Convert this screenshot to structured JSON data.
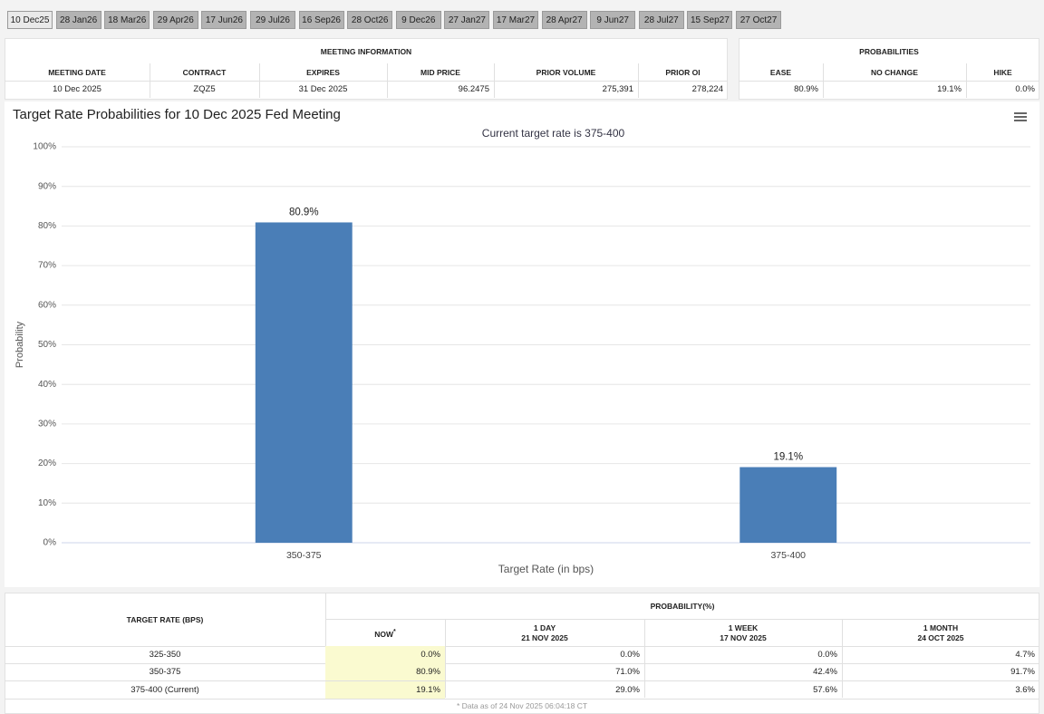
{
  "tabs": [
    "10 Dec25",
    "28 Jan26",
    "18 Mar26",
    "29 Apr26",
    "17 Jun26",
    "29 Jul26",
    "16 Sep26",
    "28 Oct26",
    "9 Dec26",
    "27 Jan27",
    "17 Mar27",
    "28 Apr27",
    "9 Jun27",
    "28 Jul27",
    "15 Sep27",
    "27 Oct27"
  ],
  "meeting_info": {
    "title": "MEETING INFORMATION",
    "columns": [
      "MEETING DATE",
      "CONTRACT",
      "EXPIRES",
      "MID PRICE",
      "PRIOR VOLUME",
      "PRIOR OI"
    ],
    "row": [
      "10 Dec 2025",
      "ZQZ5",
      "31 Dec 2025",
      "96.2475",
      "275,391",
      "278,224"
    ]
  },
  "probabilities": {
    "title": "PROBABILITIES",
    "columns": [
      "EASE",
      "NO CHANGE",
      "HIKE"
    ],
    "row": [
      "80.9%",
      "19.1%",
      "0.0%"
    ]
  },
  "chart_data": {
    "type": "bar",
    "title": "Target Rate Probabilities for 10 Dec 2025 Fed Meeting",
    "subtitle": "Current target rate is 375-400",
    "categories": [
      "350-375",
      "375-400"
    ],
    "values": [
      80.9,
      19.1
    ],
    "value_labels": [
      "80.9%",
      "19.1%"
    ],
    "color": "#4a7eb7",
    "xlabel": "Target Rate (in bps)",
    "ylabel": "Probability",
    "ylim": [
      0,
      100
    ],
    "yticks": [
      {
        "value": 0,
        "label": "0%"
      },
      {
        "value": 10,
        "label": "10%"
      },
      {
        "value": 20,
        "label": "20%"
      },
      {
        "value": 30,
        "label": "30%"
      },
      {
        "value": 40,
        "label": "40%"
      },
      {
        "value": 50,
        "label": "50%"
      },
      {
        "value": 60,
        "label": "60%"
      },
      {
        "value": 70,
        "label": "70%"
      },
      {
        "value": 80,
        "label": "80%"
      },
      {
        "value": 90,
        "label": "90%"
      },
      {
        "value": 100,
        "label": "100%"
      }
    ],
    "grid": true
  },
  "rate_table": {
    "header": "TARGET RATE (BPS)",
    "group": "PROBABILITY(%)",
    "columns": [
      {
        "label": "NOW",
        "note": "*"
      },
      {
        "label": "1 DAY",
        "date": "21 NOV 2025"
      },
      {
        "label": "1 WEEK",
        "date": "17 NOV 2025"
      },
      {
        "label": "1 MONTH",
        "date": "24 OCT 2025"
      }
    ],
    "rows": [
      [
        "325-350",
        "0.0%",
        "0.0%",
        "0.0%",
        "4.7%"
      ],
      [
        "350-375",
        "80.9%",
        "71.0%",
        "42.4%",
        "91.7%"
      ],
      [
        "375-400 (Current)",
        "19.1%",
        "29.0%",
        "57.6%",
        "3.6%"
      ]
    ],
    "footnote": "* Data as of 24 Nov 2025 06:04:18 CT"
  }
}
